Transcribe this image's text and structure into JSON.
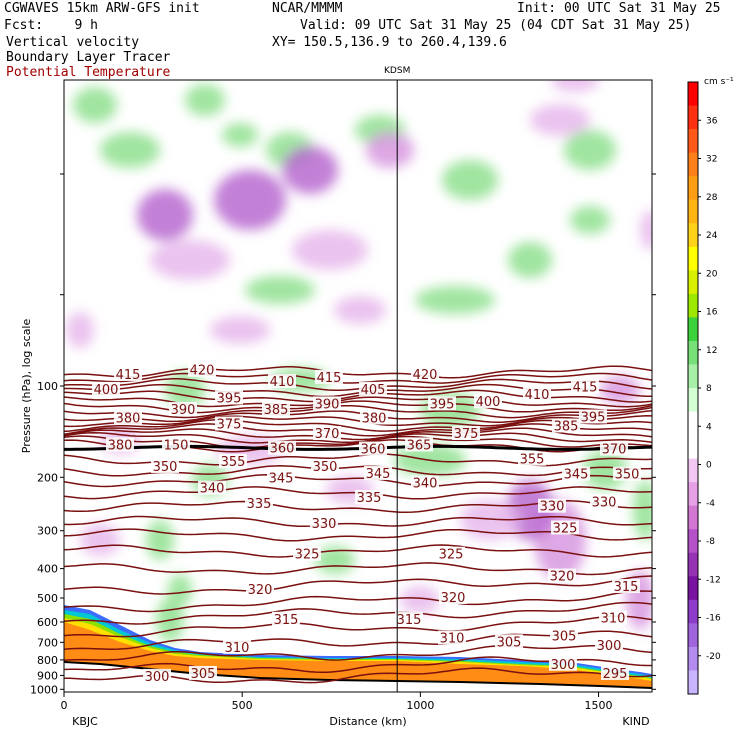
{
  "header": {
    "model": "CGWAVES 15km ARW-GFS init",
    "center": "NCAR/MMMM",
    "init": "Init: 00 UTC Sat 31 May 25",
    "fcst": "Fcst:    9 h",
    "valid": "Valid: 09 UTC Sat 31 May 25 (04 CDT Sat 31 May 25)",
    "field1": "Vertical velocity",
    "xy": "XY= 150.5,136.9 to 260.4,139.6",
    "field2": "Boundary Layer Tracer",
    "field3": "Potential Temperature"
  },
  "chart_data": {
    "type": "heatmap",
    "title": "KDSM",
    "xlabel": "Distance (km)",
    "ylabel": "Pressure (hPa), log scale",
    "x_ticks": [
      "0",
      "500",
      "1000",
      "1500"
    ],
    "x_tick_values": [
      0,
      500,
      1000,
      1500
    ],
    "xlim": [
      0,
      1650
    ],
    "y_ticks": [
      "100",
      "200",
      "300",
      "400",
      "500",
      "600",
      "700",
      "800",
      "900",
      "1000"
    ],
    "y_tick_values": [
      100,
      200,
      300,
      400,
      500,
      600,
      700,
      800,
      900,
      1000
    ],
    "left_station": "KBJC",
    "right_station": "KIND",
    "marker_station": "KDSM",
    "marker_x_km": 935,
    "colorbar": {
      "unit": "cm s⁻¹",
      "labels": [
        "36",
        "32",
        "28",
        "24",
        "20",
        "16",
        "12",
        "8",
        "4",
        "0",
        "-4",
        "-8",
        "-12",
        "-16",
        "-20"
      ],
      "colors": [
        "#ff0000",
        "#ff3010",
        "#ff5a1a",
        "#ff7f1a",
        "#ff9e14",
        "#ffb414",
        "#ffd21a",
        "#ffff00",
        "#d8f000",
        "#9ee800",
        "#3cd23c",
        "#78e078",
        "#a8f0a8",
        "#d4ffd4",
        "#ffffff",
        "#ffffff",
        "#f2c8f2",
        "#e6a0e6",
        "#d278d2",
        "#b450c8",
        "#9632b4",
        "#7814a0",
        "#8c3cc8",
        "#a064dc",
        "#b48cf0",
        "#c8b4ff"
      ]
    },
    "theta_labels": [
      {
        "v": "415",
        "x": 128,
        "p": 92
      },
      {
        "v": "420",
        "x": 202,
        "p": 89
      },
      {
        "v": "410",
        "x": 282,
        "p": 97
      },
      {
        "v": "415",
        "x": 329,
        "p": 94
      },
      {
        "v": "405",
        "x": 373,
        "p": 103
      },
      {
        "v": "420",
        "x": 425,
        "p": 92
      },
      {
        "v": "410",
        "x": 537,
        "p": 107
      },
      {
        "v": "415",
        "x": 585,
        "p": 101
      },
      {
        "v": "400",
        "x": 106,
        "p": 103
      },
      {
        "v": "390",
        "x": 183,
        "p": 120
      },
      {
        "v": "395",
        "x": 229,
        "p": 110
      },
      {
        "v": "385",
        "x": 276,
        "p": 120
      },
      {
        "v": "390",
        "x": 327,
        "p": 115
      },
      {
        "v": "395",
        "x": 442,
        "p": 115
      },
      {
        "v": "400",
        "x": 488,
        "p": 113
      },
      {
        "v": "380",
        "x": 128,
        "p": 128
      },
      {
        "v": "375",
        "x": 229,
        "p": 134
      },
      {
        "v": "370",
        "x": 327,
        "p": 144
      },
      {
        "v": "380",
        "x": 374,
        "p": 128
      },
      {
        "v": "375",
        "x": 466,
        "p": 144
      },
      {
        "v": "385",
        "x": 566,
        "p": 136
      },
      {
        "v": "395",
        "x": 593,
        "p": 127
      },
      {
        "v": "380",
        "x": 120,
        "p": 157
      },
      {
        "v": "360",
        "x": 282,
        "p": 161
      },
      {
        "v": "360",
        "x": 373,
        "p": 162
      },
      {
        "v": "365",
        "x": 419,
        "p": 157
      },
      {
        "v": "370",
        "x": 614,
        "p": 162
      },
      {
        "v": "350",
        "x": 165,
        "p": 185
      },
      {
        "v": "355",
        "x": 233,
        "p": 178
      },
      {
        "v": "350",
        "x": 325,
        "p": 185
      },
      {
        "v": "345",
        "x": 378,
        "p": 195
      },
      {
        "v": "355",
        "x": 532,
        "p": 175
      },
      {
        "v": "345",
        "x": 576,
        "p": 196
      },
      {
        "v": "350",
        "x": 627,
        "p": 196
      },
      {
        "v": "340",
        "x": 212,
        "p": 218
      },
      {
        "v": "345",
        "x": 281,
        "p": 202
      },
      {
        "v": "340",
        "x": 425,
        "p": 210
      },
      {
        "v": "335",
        "x": 259,
        "p": 245
      },
      {
        "v": "335",
        "x": 369,
        "p": 234
      },
      {
        "v": "330",
        "x": 552,
        "p": 250
      },
      {
        "v": "330",
        "x": 604,
        "p": 242
      },
      {
        "v": "330",
        "x": 324,
        "p": 285
      },
      {
        "v": "325",
        "x": 565,
        "p": 295
      },
      {
        "v": "325",
        "x": 307,
        "p": 360
      },
      {
        "v": "325",
        "x": 451,
        "p": 360
      },
      {
        "v": "320",
        "x": 562,
        "p": 425
      },
      {
        "v": "320",
        "x": 260,
        "p": 470
      },
      {
        "v": "320",
        "x": 453,
        "p": 500
      },
      {
        "v": "315",
        "x": 626,
        "p": 460
      },
      {
        "v": "315",
        "x": 286,
        "p": 590
      },
      {
        "v": "315",
        "x": 409,
        "p": 590
      },
      {
        "v": "310",
        "x": 613,
        "p": 585
      },
      {
        "v": "310",
        "x": 452,
        "p": 680
      },
      {
        "v": "305",
        "x": 509,
        "p": 700
      },
      {
        "v": "305",
        "x": 564,
        "p": 670
      },
      {
        "v": "300",
        "x": 609,
        "p": 720
      },
      {
        "v": "310",
        "x": 237,
        "p": 730
      },
      {
        "v": "300",
        "x": 563,
        "p": 830
      },
      {
        "v": "305",
        "x": 203,
        "p": 890
      },
      {
        "v": "300",
        "x": 157,
        "p": 910
      },
      {
        "v": "295",
        "x": 615,
        "p": 890
      },
      {
        "v": "150",
        "x": 176,
        "p": 157
      }
    ]
  }
}
